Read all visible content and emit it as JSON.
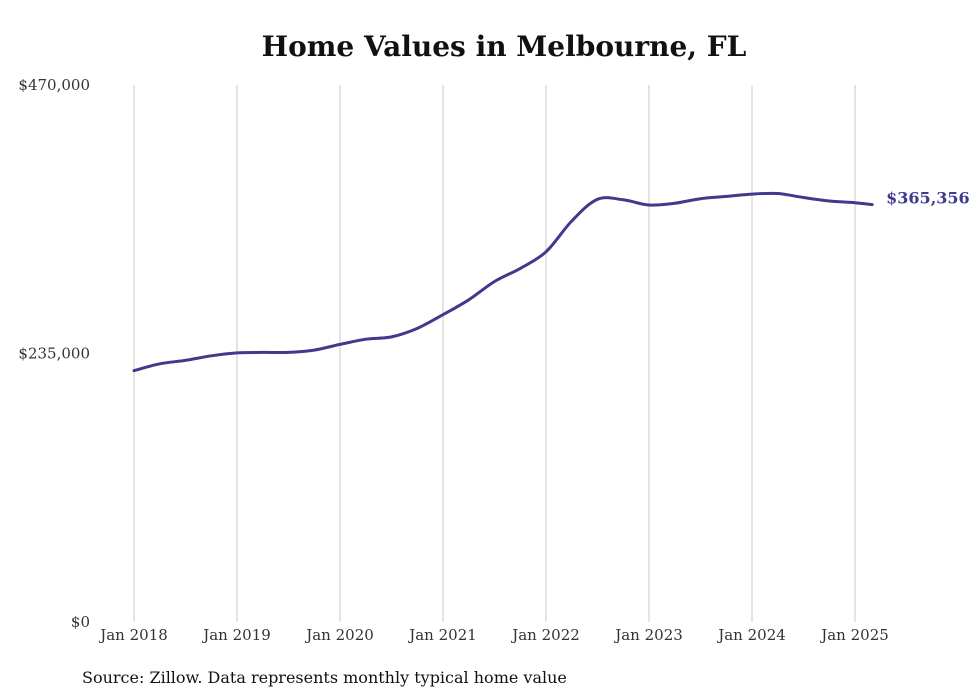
{
  "chart_data": {
    "type": "line",
    "title": "Home Values in Melbourne, FL",
    "xlabel": "",
    "ylabel": "",
    "ylim": [
      0,
      470000
    ],
    "y_ticks": [
      0,
      235000,
      470000
    ],
    "y_tick_labels": [
      "$0",
      "$235,000",
      "$470,000"
    ],
    "x_tick_labels": [
      "Jan 2018",
      "Jan 2019",
      "Jan 2020",
      "Jan 2021",
      "Jan 2022",
      "Jan 2023",
      "Jan 2024",
      "Jan 2025"
    ],
    "grid": "vertical",
    "line_color": "#3f3a8c",
    "end_label": "$365,356",
    "series": [
      {
        "x": [
          "2018-01",
          "2018-04",
          "2018-07",
          "2018-10",
          "2019-01",
          "2019-04",
          "2019-07",
          "2019-10",
          "2020-01",
          "2020-04",
          "2020-07",
          "2020-10",
          "2021-01",
          "2021-04",
          "2021-07",
          "2021-10",
          "2022-01",
          "2022-04",
          "2022-07",
          "2022-10",
          "2023-01",
          "2023-04",
          "2023-07",
          "2023-10",
          "2024-01",
          "2024-04",
          "2024-07",
          "2024-10",
          "2025-01",
          "2025-03"
        ],
        "values": [
          220000,
          226000,
          229000,
          233000,
          235500,
          236000,
          236000,
          238000,
          243000,
          247500,
          249500,
          257000,
          269000,
          282000,
          298000,
          309500,
          324000,
          351000,
          370000,
          369500,
          365000,
          366500,
          370500,
          372500,
          374500,
          375000,
          371500,
          368500,
          367000,
          365356
        ]
      }
    ]
  },
  "source": "Source: Zillow. Data represents monthly typical home value"
}
